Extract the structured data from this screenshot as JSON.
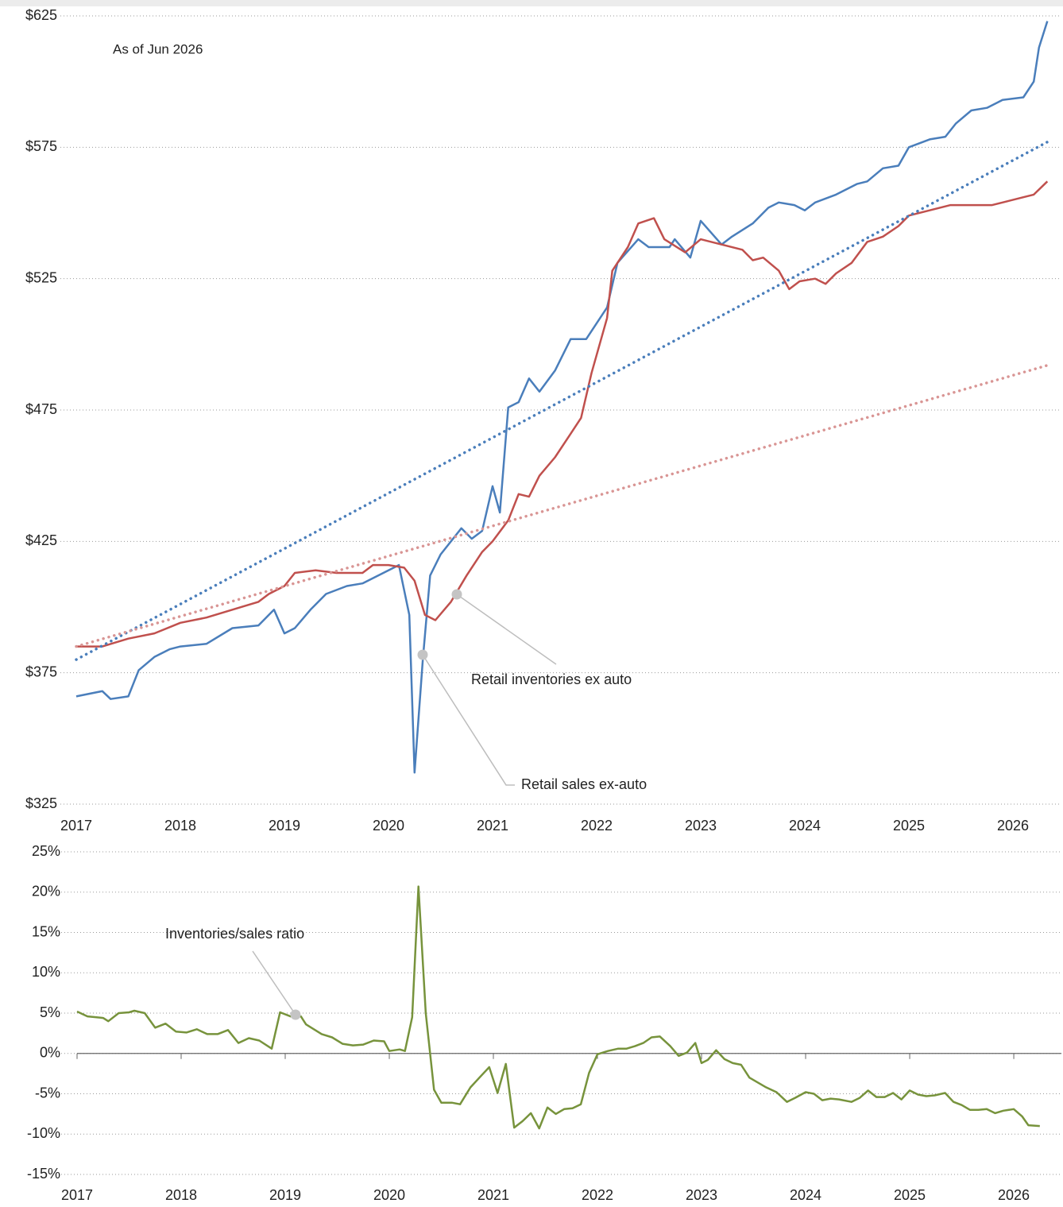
{
  "chart_data": [
    {
      "type": "line",
      "annotation": "As of Jun 2026",
      "xlim": [
        2017,
        2026.45
      ],
      "xticks": [
        2017,
        2018,
        2019,
        2020,
        2021,
        2022,
        2023,
        2024,
        2025,
        2026
      ],
      "ylim": [
        325,
        625
      ],
      "yticks": [
        {
          "value": 325,
          "label": "$325"
        },
        {
          "value": 375,
          "label": "$375"
        },
        {
          "value": 425,
          "label": "$425"
        },
        {
          "value": 475,
          "label": "$475"
        },
        {
          "value": 525,
          "label": "$525"
        },
        {
          "value": 575,
          "label": "$575"
        },
        {
          "value": 625,
          "label": "$625"
        }
      ],
      "grid": true,
      "series": [
        {
          "name": "Retail sales ex-auto",
          "color": "#4a7ebb",
          "x": [
            2017.0,
            2017.25,
            2017.33,
            2017.5,
            2017.6,
            2017.75,
            2017.9,
            2018.0,
            2018.25,
            2018.5,
            2018.75,
            2018.9,
            2019.0,
            2019.1,
            2019.25,
            2019.4,
            2019.6,
            2019.75,
            2020.0,
            2020.1,
            2020.2,
            2020.25,
            2020.33,
            2020.4,
            2020.5,
            2020.7,
            2020.8,
            2020.9,
            2021.0,
            2021.07,
            2021.15,
            2021.25,
            2021.35,
            2021.45,
            2021.6,
            2021.75,
            2021.9,
            2022.1,
            2022.2,
            2022.4,
            2022.5,
            2022.7,
            2022.75,
            2022.9,
            2023.0,
            2023.2,
            2023.3,
            2023.5,
            2023.65,
            2023.75,
            2023.9,
            2024.0,
            2024.1,
            2024.3,
            2024.5,
            2024.6,
            2024.75,
            2024.9,
            2025.0,
            2025.2,
            2025.35,
            2025.45,
            2025.6,
            2025.75,
            2025.9,
            2026.1,
            2026.2,
            2026.25,
            2026.33
          ],
          "values": [
            366,
            368,
            365,
            366,
            376,
            381,
            384,
            385,
            386,
            392,
            393,
            399,
            390,
            392,
            399,
            405,
            408,
            409,
            414,
            416,
            397,
            337,
            380,
            412,
            420,
            430,
            426,
            429,
            446,
            436,
            476,
            478,
            487,
            482,
            490,
            502,
            502,
            514,
            531,
            540,
            537,
            537,
            540,
            533,
            547,
            538,
            541,
            546,
            552,
            554,
            553,
            551,
            554,
            557,
            561,
            562,
            567,
            568,
            575,
            578,
            579,
            584,
            589,
            590,
            593,
            594,
            600,
            613,
            623
          ]
        },
        {
          "name": "Retail inventories ex auto",
          "color": "#c0504d",
          "x": [
            2017.0,
            2017.25,
            2017.5,
            2017.75,
            2018.0,
            2018.25,
            2018.5,
            2018.75,
            2018.85,
            2019.0,
            2019.1,
            2019.3,
            2019.5,
            2019.75,
            2019.85,
            2020.0,
            2020.15,
            2020.25,
            2020.35,
            2020.45,
            2020.6,
            2020.75,
            2020.9,
            2021.0,
            2021.15,
            2021.25,
            2021.35,
            2021.45,
            2021.6,
            2021.75,
            2021.85,
            2021.95,
            2022.1,
            2022.15,
            2022.3,
            2022.4,
            2022.55,
            2022.65,
            2022.85,
            2023.0,
            2023.2,
            2023.4,
            2023.5,
            2023.6,
            2023.75,
            2023.85,
            2023.95,
            2024.1,
            2024.2,
            2024.3,
            2024.45,
            2024.6,
            2024.75,
            2024.9,
            2025.0,
            2025.2,
            2025.4,
            2025.6,
            2025.8,
            2025.9,
            2026.1,
            2026.2,
            2026.33
          ],
          "values": [
            385,
            385,
            388,
            390,
            394,
            396,
            399,
            402,
            405,
            408,
            413,
            414,
            413,
            413,
            416,
            416,
            415,
            410,
            397,
            395,
            402,
            412,
            421,
            425,
            433,
            443,
            442,
            450,
            457,
            466,
            472,
            489,
            510,
            528,
            537,
            546,
            548,
            540,
            535,
            540,
            538,
            536,
            532,
            533,
            528,
            521,
            524,
            525,
            523,
            527,
            531,
            539,
            541,
            545,
            549,
            551,
            553,
            553,
            553,
            554,
            556,
            557,
            562
          ]
        },
        {
          "color": "#4a7ebb",
          "dotted": true,
          "x": [
            2017.0,
            2026.33
          ],
          "values": [
            380,
            577
          ]
        },
        {
          "color": "#d99594",
          "dotted": true,
          "x": [
            2017.0,
            2026.33
          ],
          "values": [
            385,
            492
          ]
        }
      ]
    },
    {
      "type": "line",
      "xlim": [
        2017,
        2026.45
      ],
      "xticks": [
        2017,
        2018,
        2019,
        2020,
        2021,
        2022,
        2023,
        2024,
        2025,
        2026
      ],
      "ylim": [
        -15,
        25
      ],
      "yticks": [
        {
          "value": -15,
          "label": "-15%"
        },
        {
          "value": -10,
          "label": "-10%"
        },
        {
          "value": -5,
          "label": "-5%"
        },
        {
          "value": 0,
          "label": "0%"
        },
        {
          "value": 5,
          "label": "5%"
        },
        {
          "value": 10,
          "label": "10%"
        },
        {
          "value": 15,
          "label": "15%"
        },
        {
          "value": 20,
          "label": "20%"
        },
        {
          "value": 25,
          "label": "25%"
        }
      ],
      "grid": true,
      "series": [
        {
          "name": "Inventories/sales ratio",
          "color": "#77933c",
          "x": [
            2017.0,
            2017.1,
            2017.25,
            2017.3,
            2017.4,
            2017.5,
            2017.55,
            2017.65,
            2017.75,
            2017.85,
            2017.95,
            2018.05,
            2018.15,
            2018.25,
            2018.35,
            2018.45,
            2018.55,
            2018.65,
            2018.75,
            2018.87,
            2018.95,
            2019.05,
            2019.15,
            2019.2,
            2019.35,
            2019.45,
            2019.55,
            2019.65,
            2019.75,
            2019.85,
            2019.95,
            2020.0,
            2020.1,
            2020.15,
            2020.22,
            2020.28,
            2020.35,
            2020.43,
            2020.5,
            2020.6,
            2020.68,
            2020.78,
            2020.88,
            2020.96,
            2021.04,
            2021.12,
            2021.2,
            2021.28,
            2021.36,
            2021.44,
            2021.52,
            2021.6,
            2021.68,
            2021.76,
            2021.84,
            2021.92,
            2022.0,
            2022.1,
            2022.2,
            2022.28,
            2022.36,
            2022.44,
            2022.52,
            2022.6,
            2022.7,
            2022.78,
            2022.86,
            2022.94,
            2023.0,
            2023.06,
            2023.14,
            2023.22,
            2023.3,
            2023.38,
            2023.46,
            2023.54,
            2023.62,
            2023.72,
            2023.82,
            2023.9,
            2024.0,
            2024.08,
            2024.16,
            2024.24,
            2024.32,
            2024.44,
            2024.52,
            2024.6,
            2024.68,
            2024.76,
            2024.84,
            2024.92,
            2025.0,
            2025.08,
            2025.16,
            2025.24,
            2025.34,
            2025.42,
            2025.5,
            2025.58,
            2025.66,
            2025.74,
            2025.82,
            2025.9,
            2026.0,
            2026.08,
            2026.14,
            2026.25
          ],
          "values": [
            5.2,
            4.6,
            4.4,
            4.0,
            5.0,
            5.1,
            5.3,
            5.0,
            3.2,
            3.7,
            2.7,
            2.6,
            3.0,
            2.4,
            2.4,
            2.9,
            1.3,
            1.9,
            1.6,
            0.6,
            5.1,
            4.6,
            4.6,
            3.6,
            2.4,
            2.0,
            1.2,
            1.0,
            1.1,
            1.6,
            1.5,
            0.3,
            0.5,
            0.3,
            4.5,
            20.7,
            5.0,
            -4.5,
            -6.1,
            -6.1,
            -6.3,
            -4.2,
            -2.8,
            -1.7,
            -4.9,
            -1.3,
            -9.2,
            -8.4,
            -7.4,
            -9.3,
            -6.7,
            -7.5,
            -6.9,
            -6.8,
            -6.3,
            -2.4,
            -0.1,
            0.3,
            0.6,
            0.6,
            0.9,
            1.3,
            2.0,
            2.1,
            0.9,
            -0.3,
            0.1,
            1.3,
            -1.2,
            -0.8,
            0.4,
            -0.7,
            -1.2,
            -1.4,
            -3.0,
            -3.6,
            -4.2,
            -4.8,
            -6.0,
            -5.5,
            -4.8,
            -5.0,
            -5.8,
            -5.6,
            -5.7,
            -6.0,
            -5.5,
            -4.6,
            -5.4,
            -5.4,
            -4.9,
            -5.7,
            -4.6,
            -5.1,
            -5.3,
            -5.2,
            -4.9,
            -6.0,
            -6.4,
            -7.0,
            -7.0,
            -6.9,
            -7.4,
            -7.1,
            -6.9,
            -7.8,
            -8.9,
            -9.0
          ]
        }
      ]
    }
  ]
}
